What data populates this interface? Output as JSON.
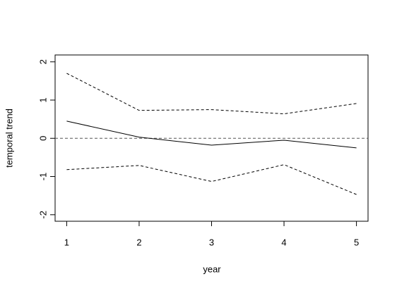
{
  "chart_data": {
    "type": "line",
    "x_label": "year",
    "y_label": "temporal trend",
    "x": [
      1,
      2,
      3,
      4,
      5
    ],
    "series": [
      {
        "color": "#000000",
        "dashed": false,
        "values": [
          0.45,
          0.03,
          -0.18,
          -0.05,
          -0.25
        ]
      },
      {
        "color": "#000000",
        "dashed": true,
        "values": [
          1.7,
          0.73,
          0.75,
          0.64,
          0.91
        ]
      },
      {
        "color": "#000000",
        "dashed": true,
        "values": [
          -0.82,
          -0.71,
          -1.13,
          -0.69,
          -1.47
        ]
      }
    ],
    "hline": {
      "value": 0,
      "color": "#555555",
      "dashed": true
    },
    "xlim": [
      0.84,
      5.16
    ],
    "ylim": [
      -2.17,
      2.18
    ],
    "xticks": [
      1,
      2,
      3,
      4,
      5
    ],
    "yticks": [
      -2,
      -1,
      0,
      1,
      2
    ]
  }
}
